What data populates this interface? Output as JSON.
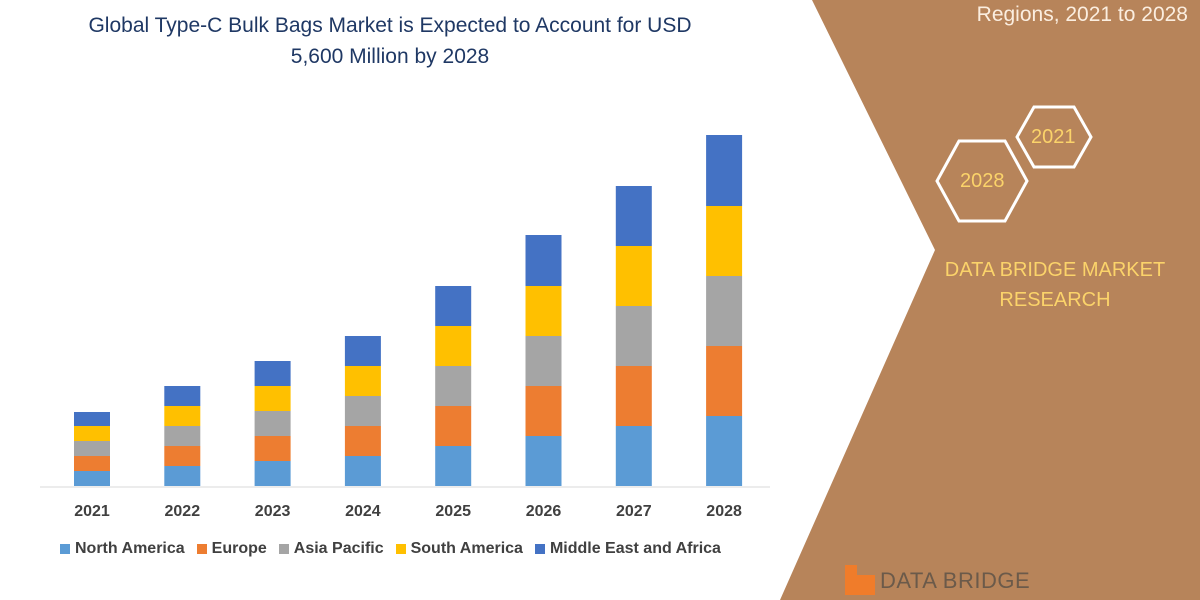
{
  "header": {
    "title_line1": "Global Type-C Bulk Bags Market is Expected to Account for USD",
    "title_line2": "5,600 Million by 2028",
    "side_title": "Regions, 2021 to 2028"
  },
  "badges": {
    "year_start": "2021",
    "year_end": "2028"
  },
  "brand": {
    "line1": "DATA BRIDGE MARKET",
    "line2": "RESEARCH",
    "logo_text": "DATA BRIDGE"
  },
  "colors": {
    "panel": "#b7845a",
    "accent": "#fbd36a"
  },
  "chart_data": {
    "type": "bar",
    "stacked": true,
    "title": "Global Type-C Bulk Bags Market is Expected to Account for USD 5,600 Million by 2028",
    "categories": [
      "2021",
      "2022",
      "2023",
      "2024",
      "2025",
      "2026",
      "2027",
      "2028"
    ],
    "series": [
      {
        "name": "North America",
        "color": "#5b9bd5",
        "values": [
          15,
          20,
          25,
          30,
          40,
          50,
          60,
          70
        ]
      },
      {
        "name": "Europe",
        "color": "#ed7d31",
        "values": [
          15,
          20,
          25,
          30,
          40,
          50,
          60,
          70
        ]
      },
      {
        "name": "Asia Pacific",
        "color": "#a5a5a5",
        "values": [
          15,
          20,
          25,
          30,
          40,
          50,
          60,
          70
        ]
      },
      {
        "name": "South America",
        "color": "#ffc000",
        "values": [
          15,
          20,
          25,
          30,
          40,
          50,
          60,
          70
        ]
      },
      {
        "name": "Middle East and Africa",
        "color": "#4472c4",
        "values": [
          14,
          20,
          25,
          30,
          40,
          51,
          60,
          71
        ]
      }
    ],
    "xlabel": "",
    "ylabel": "",
    "y_axis_shown": false,
    "grid": false,
    "legend": "bottom"
  }
}
